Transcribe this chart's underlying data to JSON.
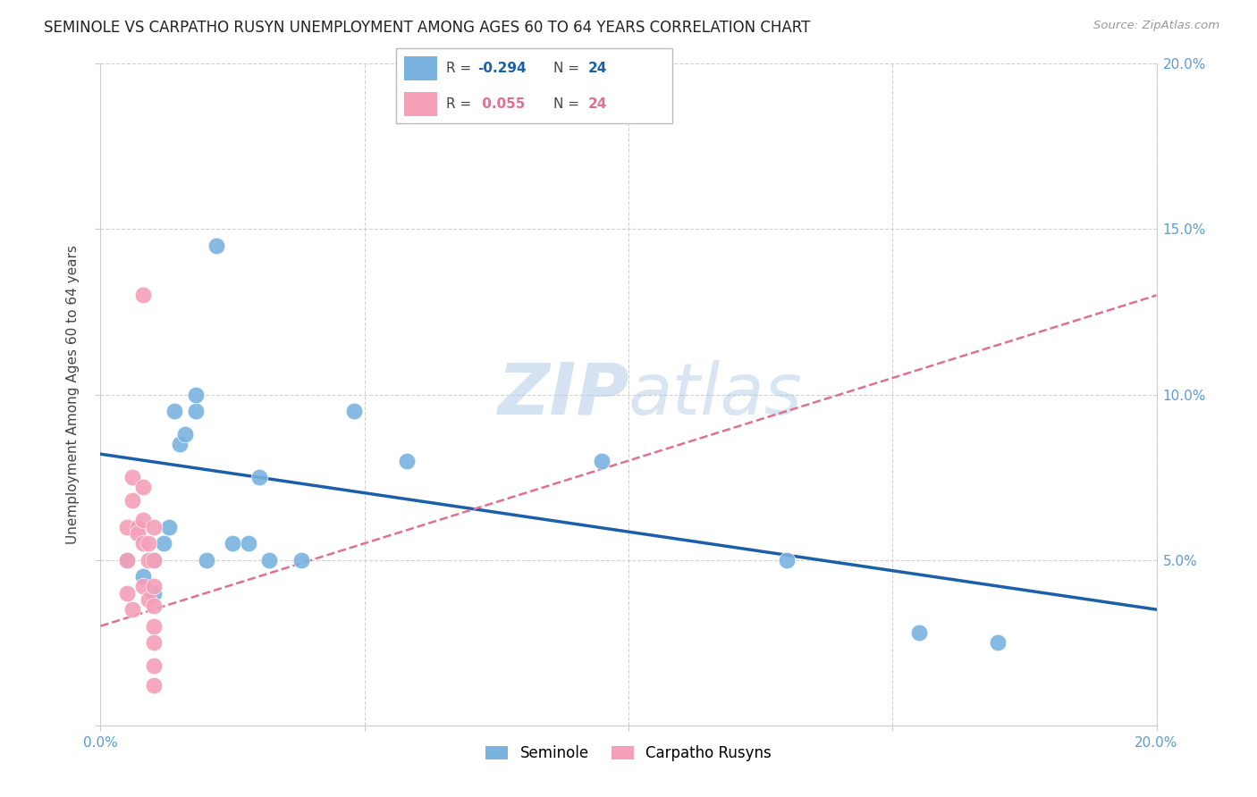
{
  "title": "SEMINOLE VS CARPATHO RUSYN UNEMPLOYMENT AMONG AGES 60 TO 64 YEARS CORRELATION CHART",
  "source": "Source: ZipAtlas.com",
  "ylabel": "Unemployment Among Ages 60 to 64 years",
  "xlim": [
    0.0,
    0.2
  ],
  "ylim": [
    0.0,
    0.2
  ],
  "xticks": [
    0.0,
    0.05,
    0.1,
    0.15,
    0.2
  ],
  "yticks": [
    0.0,
    0.05,
    0.1,
    0.15,
    0.2
  ],
  "xtick_labels": [
    "0.0%",
    "",
    "",
    "",
    "20.0%"
  ],
  "ytick_labels": [
    "",
    "5.0%",
    "10.0%",
    "15.0%",
    "20.0%"
  ],
  "seminole_R": -0.294,
  "seminole_N": 24,
  "carpatho_R": 0.055,
  "carpatho_N": 24,
  "seminole_color": "#7ab3e0",
  "carpatho_color": "#f4a0b8",
  "seminole_line_color": "#1a5fa8",
  "carpatho_line_color": "#e07090",
  "watermark_color": "#dce8f5",
  "seminole_x": [
    0.005,
    0.008,
    0.01,
    0.01,
    0.012,
    0.013,
    0.014,
    0.015,
    0.016,
    0.018,
    0.018,
    0.02,
    0.022,
    0.025,
    0.028,
    0.03,
    0.032,
    0.038,
    0.048,
    0.058,
    0.095,
    0.13,
    0.155,
    0.17
  ],
  "seminole_y": [
    0.05,
    0.045,
    0.05,
    0.04,
    0.055,
    0.06,
    0.095,
    0.085,
    0.088,
    0.095,
    0.1,
    0.05,
    0.145,
    0.055,
    0.055,
    0.075,
    0.05,
    0.05,
    0.095,
    0.08,
    0.08,
    0.05,
    0.028,
    0.025
  ],
  "carpatho_x": [
    0.005,
    0.005,
    0.005,
    0.006,
    0.006,
    0.006,
    0.007,
    0.007,
    0.008,
    0.008,
    0.008,
    0.008,
    0.008,
    0.009,
    0.009,
    0.009,
    0.01,
    0.01,
    0.01,
    0.01,
    0.01,
    0.01,
    0.01,
    0.01
  ],
  "carpatho_y": [
    0.06,
    0.05,
    0.04,
    0.075,
    0.068,
    0.035,
    0.06,
    0.058,
    0.13,
    0.072,
    0.062,
    0.055,
    0.042,
    0.055,
    0.05,
    0.038,
    0.06,
    0.05,
    0.042,
    0.036,
    0.03,
    0.025,
    0.018,
    0.012
  ],
  "seminole_line_x0": 0.0,
  "seminole_line_x1": 0.2,
  "seminole_line_y0": 0.082,
  "seminole_line_y1": 0.035,
  "carpatho_line_x0": 0.0,
  "carpatho_line_x1": 0.2,
  "carpatho_line_y0": 0.03,
  "carpatho_line_y1": 0.13
}
